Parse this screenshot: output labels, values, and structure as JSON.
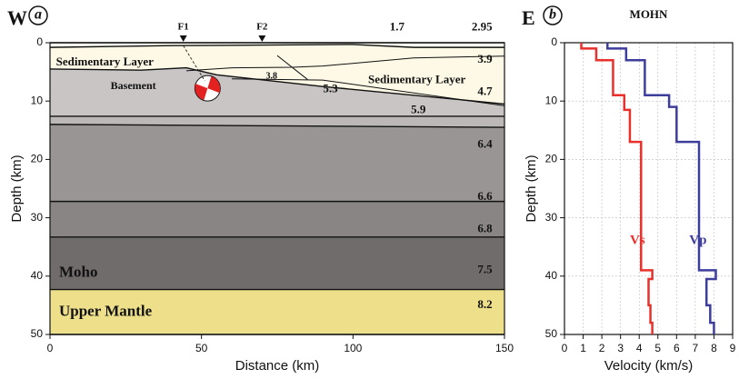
{
  "chart_data": [
    {
      "type": "section",
      "panel": "W",
      "label": "a",
      "x_label": "Distance (km)",
      "y_label": "Depth (km)",
      "xlim": [
        0,
        150
      ],
      "xticks": [
        0,
        50,
        100,
        150
      ],
      "ylim": [
        0,
        50
      ],
      "yticks": [
        0,
        10,
        20,
        30,
        40,
        50
      ],
      "interfaces": [
        {
          "x": [
            0,
            150
          ],
          "y": [
            0,
            0
          ]
        },
        {
          "x": [
            0,
            40,
            100,
            120,
            150
          ],
          "y": [
            0.8,
            0.5,
            0.3,
            0.8,
            0.8
          ]
        },
        {
          "x": [
            0,
            30,
            45,
            55,
            90,
            120,
            150
          ],
          "y": [
            4.5,
            4.7,
            4.3,
            5.5,
            7.5,
            9,
            10.5
          ]
        },
        {
          "x": [
            0,
            150
          ],
          "y": [
            12.6,
            12.6
          ]
        },
        {
          "x": [
            0,
            150
          ],
          "y": [
            14,
            14.5
          ]
        },
        {
          "x": [
            0,
            150
          ],
          "y": [
            27.2,
            27.2
          ]
        },
        {
          "x": [
            0,
            150
          ],
          "y": [
            33.3,
            33.3
          ]
        },
        {
          "x": [
            0,
            150
          ],
          "y": [
            42.3,
            42.3
          ]
        },
        {
          "x": [
            0,
            150
          ],
          "y": [
            50,
            50
          ]
        }
      ],
      "layer_colors": [
        "#fffef2",
        "#fdf9e6",
        "#c9c5c5",
        "#bcb8b8",
        "#9a9595",
        "#8a8585",
        "#716c6c",
        "#eee08a"
      ],
      "internal_boundaries": [
        {
          "x": [
            45,
            60,
            80,
            90,
            120,
            150
          ],
          "y": [
            4.8,
            4.3,
            4.2,
            4.0,
            2.6,
            2.3
          ]
        },
        {
          "x": [
            60,
            90,
            150
          ],
          "y": [
            6.2,
            6.4,
            10.8
          ]
        },
        {
          "x": [
            75,
            85
          ],
          "y": [
            2.2,
            6.3
          ]
        }
      ],
      "faults": [
        {
          "name": "F1",
          "x": 44
        },
        {
          "name": "F2",
          "x": 70
        }
      ],
      "layer_labels": [
        "Sedimentary Layer",
        "Sedimentary Layer",
        "Basement",
        "Moho",
        "Upper Mantle"
      ],
      "velocity_labels": [
        1.7,
        2.95,
        3.9,
        3.8,
        4.7,
        5.3,
        5.9,
        6.4,
        6.6,
        6.8,
        7.5,
        8.2
      ]
    },
    {
      "type": "line",
      "panel": "E",
      "label": "b",
      "title": "MOHN",
      "x_label": "Velocity (km/s)",
      "y_label": "Depth (km)",
      "xlim": [
        0,
        9
      ],
      "xticks": [
        0,
        1,
        2,
        3,
        4,
        5,
        6,
        7,
        8,
        9
      ],
      "ylim": [
        0,
        50
      ],
      "yticks": [
        0,
        10,
        20,
        30,
        40,
        50
      ],
      "grid": true,
      "series": [
        {
          "name": "Vs",
          "color": "#e8312b",
          "x": [
            0.9,
            0.9,
            1.7,
            1.7,
            2.6,
            2.6,
            3.2,
            3.2,
            3.5,
            3.5,
            4.1,
            4.1,
            4.7,
            4.7,
            4.5,
            4.5,
            4.6,
            4.6,
            4.7,
            4.7
          ],
          "y": [
            0,
            1,
            1,
            3,
            3,
            9,
            9,
            11.5,
            11.5,
            17,
            17,
            39,
            39,
            40.5,
            40.5,
            45,
            45,
            48,
            48,
            50
          ]
        },
        {
          "name": "Vp",
          "color": "#3d3d9c",
          "x": [
            2.3,
            2.3,
            3.3,
            3.3,
            4.3,
            4.3,
            5.6,
            5.6,
            6.0,
            6.0,
            7.2,
            7.2,
            8.1,
            8.1,
            7.6,
            7.6,
            7.8,
            7.8,
            8.0,
            8.0
          ],
          "y": [
            0,
            1,
            1,
            3,
            3,
            9,
            9,
            11,
            11,
            17,
            17,
            39,
            39,
            40.5,
            40.5,
            45,
            45,
            48,
            48,
            50
          ]
        }
      ]
    }
  ]
}
